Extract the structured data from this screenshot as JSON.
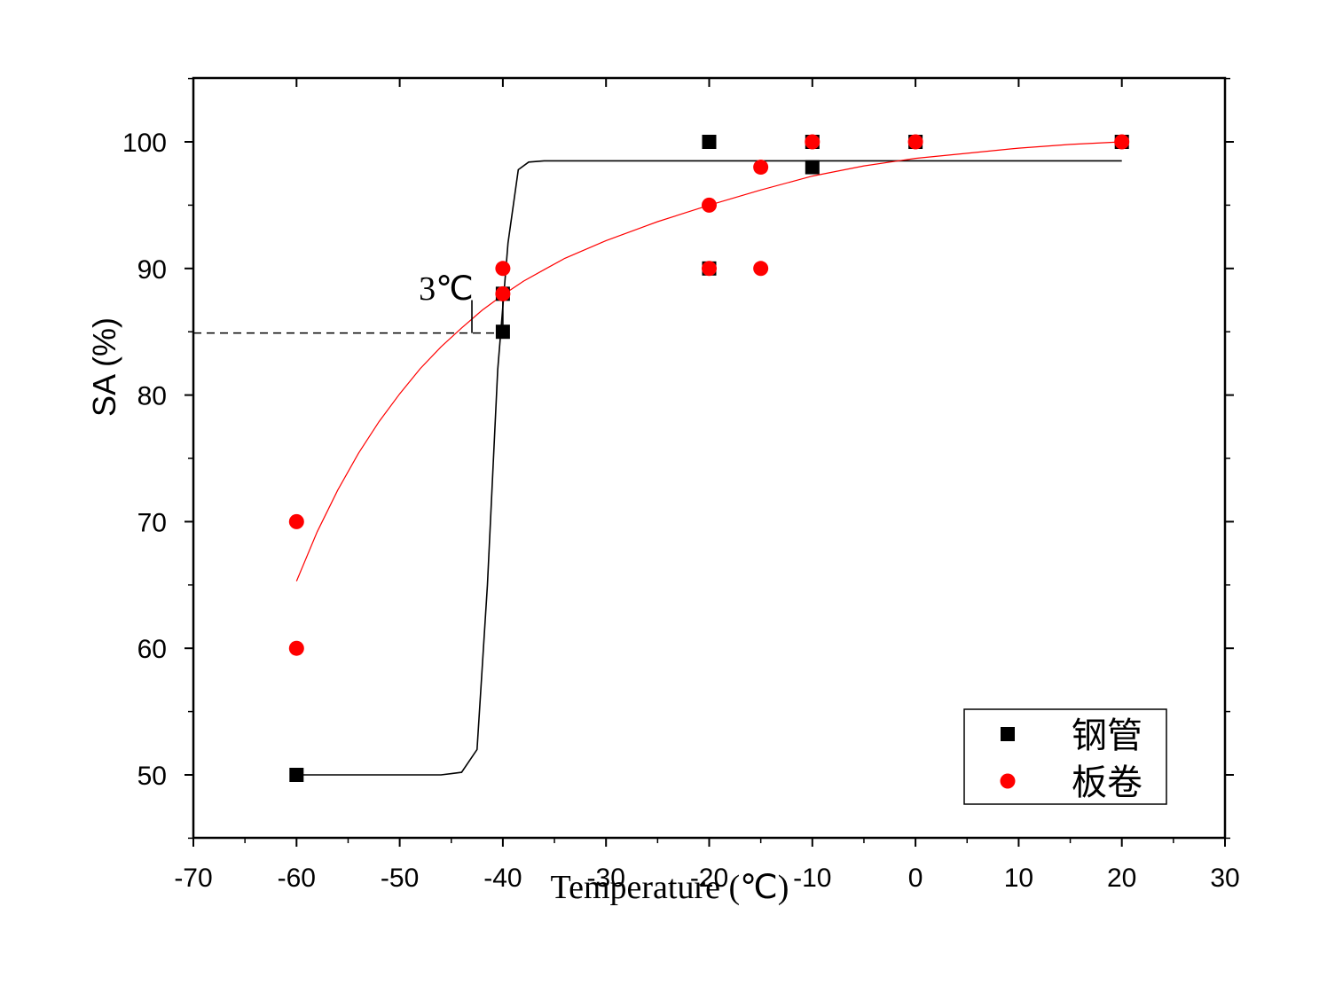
{
  "chart_data": {
    "type": "scatter",
    "title": "",
    "xlabel": "Temperature (℃)",
    "ylabel": "SA (%)",
    "xlim": [
      -70,
      30
    ],
    "ylim": [
      45,
      105
    ],
    "xticks": [
      -70,
      -60,
      -50,
      -40,
      -30,
      -20,
      -10,
      0,
      10,
      20,
      30
    ],
    "yticks": [
      50,
      60,
      70,
      80,
      90,
      100
    ],
    "legend_position": "bottom-right",
    "grid": false,
    "series": [
      {
        "name": "钢管",
        "marker": "square",
        "color": "#000000",
        "points": [
          [
            -60,
            50
          ],
          [
            -40,
            85
          ],
          [
            -40,
            88
          ],
          [
            -20,
            100
          ],
          [
            -20,
            90
          ],
          [
            -10,
            98
          ],
          [
            -10,
            100
          ],
          [
            0,
            100
          ],
          [
            20,
            100
          ]
        ]
      },
      {
        "name": "板卷",
        "marker": "circle",
        "color": "#ff0000",
        "points": [
          [
            -60,
            70
          ],
          [
            -60,
            60
          ],
          [
            -40,
            90
          ],
          [
            -40,
            88
          ],
          [
            -20,
            95
          ],
          [
            -20,
            90
          ],
          [
            -15,
            98
          ],
          [
            -15,
            90
          ],
          [
            -10,
            100
          ],
          [
            0,
            100
          ],
          [
            20,
            100
          ]
        ]
      }
    ],
    "fit_curves": [
      {
        "series": "钢管",
        "color": "#000000",
        "points": [
          [
            -60,
            50
          ],
          [
            -46,
            50
          ],
          [
            -44,
            50.2
          ],
          [
            -42.5,
            52
          ],
          [
            -41.5,
            65
          ],
          [
            -40.5,
            82
          ],
          [
            -39.5,
            92
          ],
          [
            -38.5,
            97.8
          ],
          [
            -37.5,
            98.4
          ],
          [
            -36,
            98.5
          ],
          [
            20,
            98.5
          ]
        ]
      },
      {
        "series": "板卷",
        "color": "#ff0000",
        "points": [
          [
            -60,
            65.3
          ],
          [
            -58,
            69.2
          ],
          [
            -56,
            72.5
          ],
          [
            -54,
            75.4
          ],
          [
            -52,
            77.9
          ],
          [
            -50,
            80.1
          ],
          [
            -48,
            82.1
          ],
          [
            -46,
            83.8
          ],
          [
            -44,
            85.3
          ],
          [
            -42,
            86.7
          ],
          [
            -40,
            87.9
          ],
          [
            -38,
            89
          ],
          [
            -36,
            89.9
          ],
          [
            -34,
            90.8
          ],
          [
            -32,
            91.5
          ],
          [
            -30,
            92.2
          ],
          [
            -25,
            93.7
          ],
          [
            -20,
            95
          ],
          [
            -15,
            96.2
          ],
          [
            -10,
            97.3
          ],
          [
            -5,
            98.1
          ],
          [
            0,
            98.7
          ],
          [
            5,
            99.1
          ],
          [
            10,
            99.5
          ],
          [
            15,
            99.8
          ],
          [
            20,
            100
          ]
        ]
      }
    ],
    "annotations": [
      {
        "text": "3℃",
        "x": -45.5,
        "y": 88.5,
        "dashed_hline": {
          "y": 84.9,
          "x_from": -70,
          "x_to": -40
        },
        "markers_x": [
          -43,
          -40
        ],
        "marker_y_range": [
          84.9,
          87.5
        ]
      }
    ]
  }
}
